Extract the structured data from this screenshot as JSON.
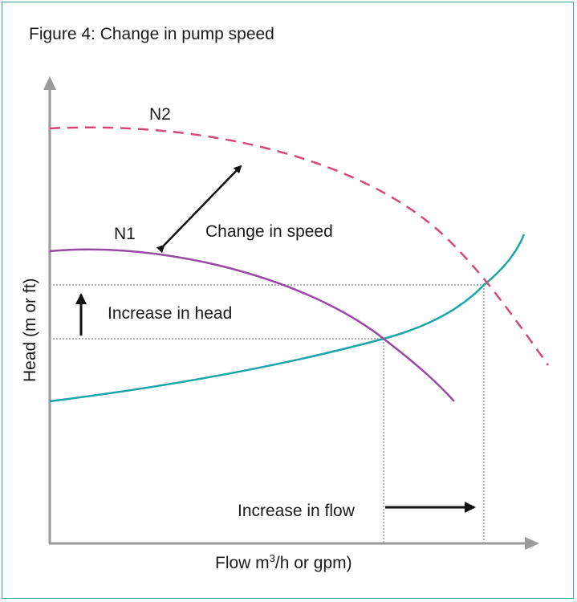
{
  "figure": {
    "title": "Figure 4: Change in pump speed",
    "x_axis_label_prefix": "Flow m",
    "x_axis_label_superscript": "3",
    "x_axis_label_suffix": "/h or gpm)",
    "y_axis_label": "Head (m or ft)"
  },
  "curves": {
    "n2_label": "N2",
    "n1_label": "N1",
    "n2_color": "#d6487a",
    "n1_color": "#9a4aa6",
    "system_color": "#1aa6a8"
  },
  "annotations": {
    "change_in_speed": "Change in speed",
    "increase_in_head": "Increase in head",
    "increase_in_flow": "Increase in flow"
  },
  "colors": {
    "axis": "#9a9a9a",
    "frame": "#3aa6a3",
    "guide": "#b5b5b5",
    "arrow": "#111111"
  }
}
